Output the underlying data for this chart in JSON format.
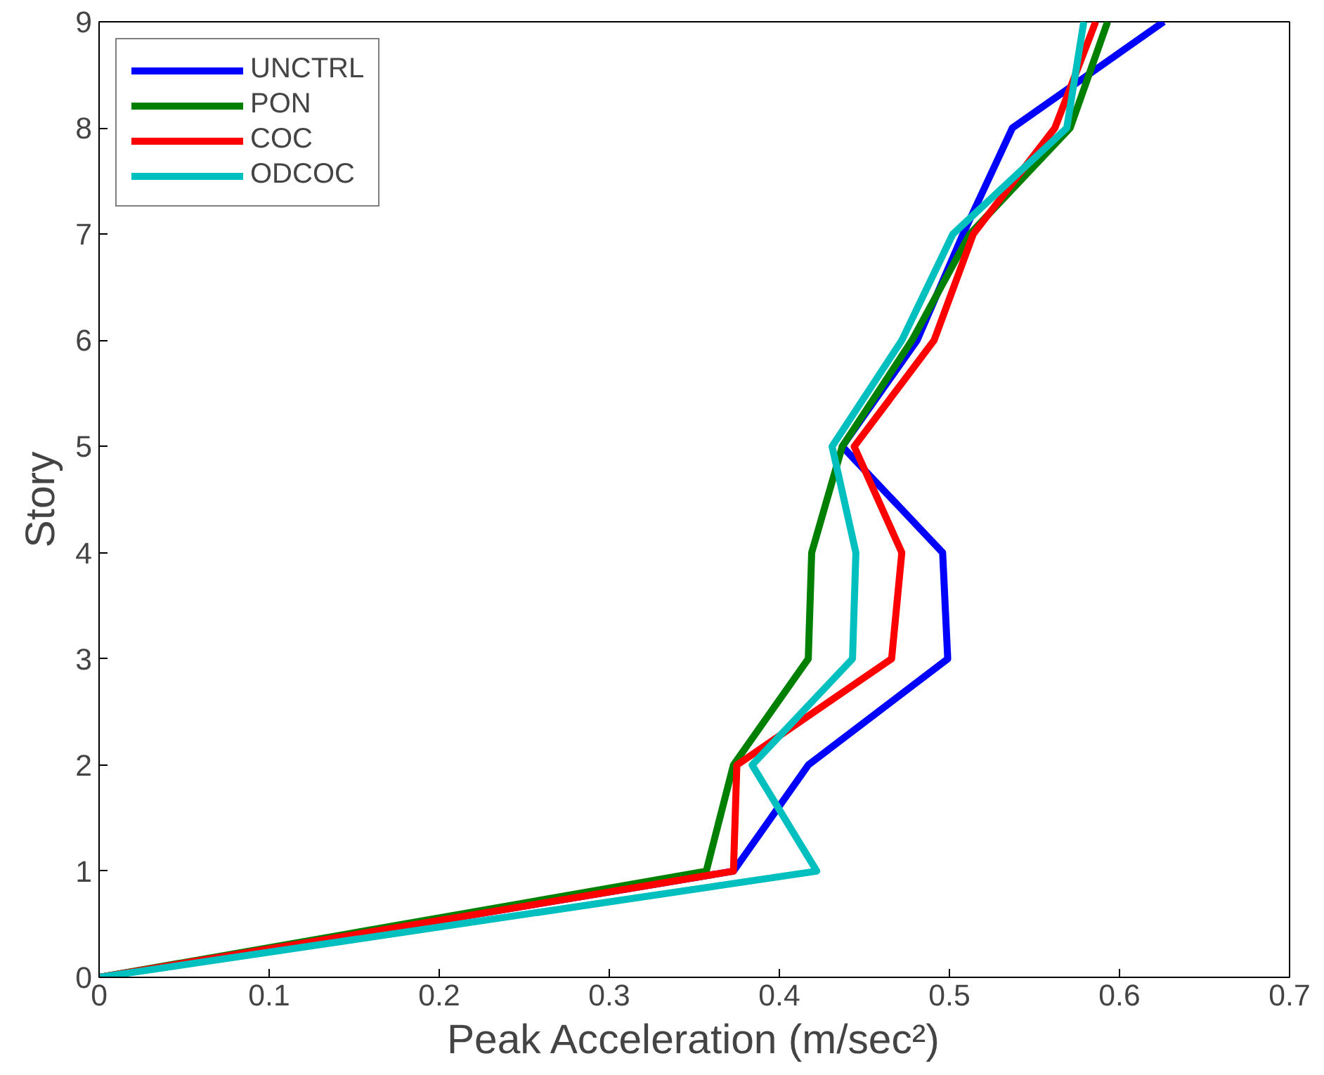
{
  "chart_data": {
    "type": "line",
    "xlabel": "Peak Acceleration (m/sec²)",
    "ylabel": "Story",
    "xlim": [
      0,
      0.7
    ],
    "xticks": [
      0,
      0.1,
      0.2,
      0.3,
      0.4,
      0.5,
      0.6,
      0.7
    ],
    "ylim": [
      0,
      9
    ],
    "yticks": [
      0,
      1,
      2,
      3,
      4,
      5,
      6,
      7,
      8,
      9
    ],
    "grid": false,
    "legend": "top left",
    "marker": "none",
    "line_style": "solid",
    "series": [
      {
        "name": "UNCTRL",
        "color": "#0000ff",
        "x": [
          0,
          0.373,
          0.417,
          0.499,
          0.496,
          0.437,
          0.481,
          0.508,
          0.537,
          0.626
        ],
        "values": [
          0,
          1,
          2,
          3,
          4,
          5,
          6,
          7,
          8,
          9
        ]
      },
      {
        "name": "PON",
        "color": "#008000",
        "x": [
          0,
          0.357,
          0.373,
          0.417,
          0.419,
          0.437,
          0.478,
          0.512,
          0.571,
          0.593
        ],
        "values": [
          0,
          1,
          2,
          3,
          4,
          5,
          6,
          7,
          8,
          9
        ]
      },
      {
        "name": "COC",
        "color": "#ff0000",
        "x": [
          0,
          0.373,
          0.375,
          0.466,
          0.472,
          0.444,
          0.491,
          0.514,
          0.562,
          0.586
        ],
        "values": [
          0,
          1,
          2,
          3,
          4,
          5,
          6,
          7,
          8,
          9
        ]
      },
      {
        "name": "ODCOC",
        "color": "#00bfbf",
        "x": [
          0,
          0.422,
          0.384,
          0.443,
          0.445,
          0.431,
          0.472,
          0.502,
          0.569,
          0.579
        ],
        "values": [
          0,
          1,
          2,
          3,
          4,
          5,
          6,
          7,
          8,
          9
        ]
      }
    ]
  }
}
